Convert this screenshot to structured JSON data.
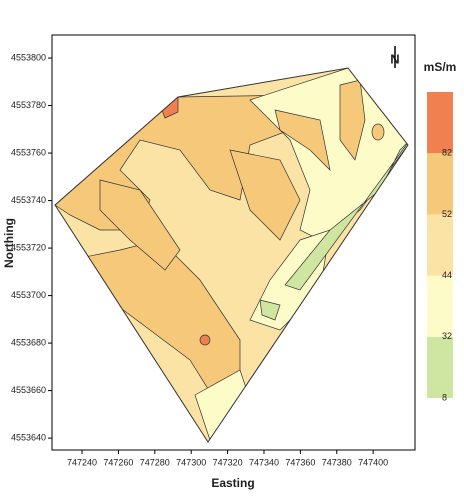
{
  "chart_data": {
    "type": "contour-map",
    "x_label": "Easting",
    "y_label": "Northing",
    "xlim": [
      747223.5,
      747423
    ],
    "ylim": [
      4553635,
      4553809.7
    ],
    "xticks": [
      747240,
      747260,
      747280,
      747300,
      747320,
      747340,
      747360,
      747380,
      747400
    ],
    "yticks": [
      4553640,
      4553660,
      4553680,
      4553700,
      4553720,
      4553740,
      4553760,
      4553780,
      4553800
    ],
    "north": "N",
    "legend": {
      "title": "mS/m",
      "breaks": [
        8,
        32,
        44,
        52,
        82
      ],
      "colors": [
        "#cfe6a0",
        "#fdfbc8",
        "#fbe3a6",
        "#f5c87a",
        "#f08050"
      ]
    }
  }
}
